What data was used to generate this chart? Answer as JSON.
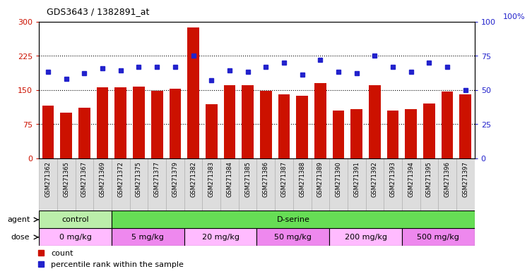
{
  "title": "GDS3643 / 1382891_at",
  "samples": [
    "GSM271362",
    "GSM271365",
    "GSM271367",
    "GSM271369",
    "GSM271372",
    "GSM271375",
    "GSM271377",
    "GSM271379",
    "GSM271382",
    "GSM271383",
    "GSM271384",
    "GSM271385",
    "GSM271386",
    "GSM271387",
    "GSM271388",
    "GSM271389",
    "GSM271390",
    "GSM271391",
    "GSM271392",
    "GSM271393",
    "GSM271394",
    "GSM271395",
    "GSM271396",
    "GSM271397"
  ],
  "counts": [
    115,
    100,
    110,
    155,
    155,
    157,
    148,
    153,
    287,
    118,
    160,
    160,
    148,
    140,
    137,
    165,
    105,
    108,
    160,
    105,
    108,
    120,
    147,
    140
  ],
  "percentiles": [
    63,
    58,
    62,
    66,
    64,
    67,
    67,
    67,
    75,
    57,
    64,
    63,
    67,
    70,
    61,
    72,
    63,
    62,
    75,
    67,
    63,
    70,
    67,
    50
  ],
  "bar_color": "#cc1100",
  "dot_color": "#2222cc",
  "left_ylim": [
    0,
    300
  ],
  "right_ylim": [
    0,
    100
  ],
  "left_yticks": [
    0,
    75,
    150,
    225,
    300
  ],
  "right_yticks": [
    0,
    25,
    50,
    75,
    100
  ],
  "right_ylabel": "100%",
  "hlines": [
    75,
    150,
    225
  ],
  "agent_groups": [
    {
      "label": "control",
      "start": 0,
      "end": 4,
      "color": "#bbeeaa"
    },
    {
      "label": "D-serine",
      "start": 4,
      "end": 24,
      "color": "#66dd55"
    }
  ],
  "dose_groups": [
    {
      "label": "0 mg/kg",
      "start": 0,
      "end": 4,
      "color": "#ffbbff"
    },
    {
      "label": "5 mg/kg",
      "start": 4,
      "end": 8,
      "color": "#ee88ee"
    },
    {
      "label": "20 mg/kg",
      "start": 8,
      "end": 12,
      "color": "#ffbbff"
    },
    {
      "label": "50 mg/kg",
      "start": 12,
      "end": 16,
      "color": "#ee88ee"
    },
    {
      "label": "200 mg/kg",
      "start": 16,
      "end": 20,
      "color": "#ffbbff"
    },
    {
      "label": "500 mg/kg",
      "start": 20,
      "end": 24,
      "color": "#ee88ee"
    }
  ],
  "bg_color": "#ffffff",
  "plot_bg": "#ffffff",
  "xlabel_bg": "#dddddd"
}
